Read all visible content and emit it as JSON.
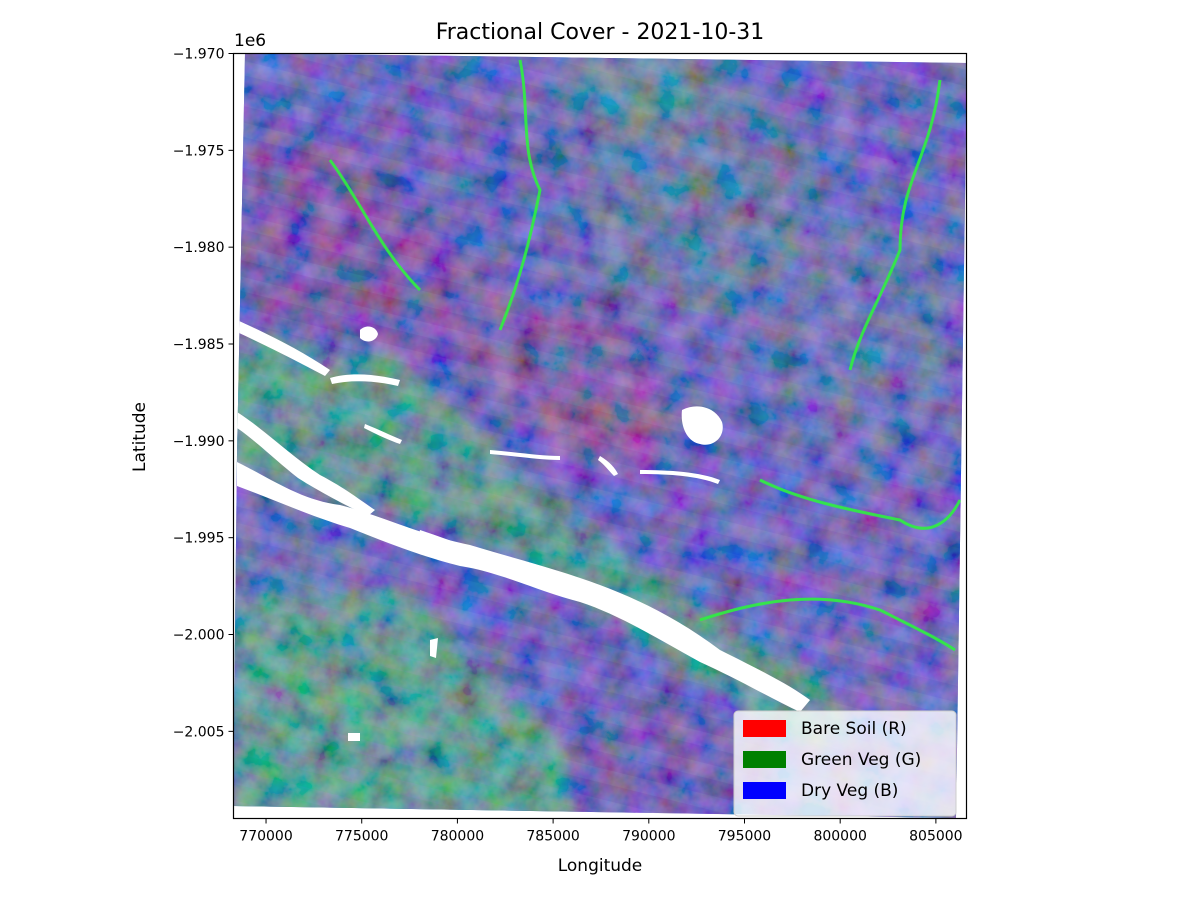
{
  "chart_data": {
    "type": "heatmap",
    "title": "Fractional Cover - 2021-10-31",
    "xlabel": "Longitude",
    "ylabel": "Latitude",
    "y_offset_label": "1e6",
    "xlim": [
      768300,
      806600
    ],
    "ylim": [
      -2.0095,
      -1.97
    ],
    "x_ticks": [
      {
        "value": 770000,
        "label": "770000"
      },
      {
        "value": 775000,
        "label": "775000"
      },
      {
        "value": 780000,
        "label": "780000"
      },
      {
        "value": 785000,
        "label": "785000"
      },
      {
        "value": 790000,
        "label": "790000"
      },
      {
        "value": 795000,
        "label": "795000"
      },
      {
        "value": 800000,
        "label": "800000"
      },
      {
        "value": 805000,
        "label": "805000"
      }
    ],
    "y_ticks": [
      {
        "value": -1.97,
        "label": "−1.970"
      },
      {
        "value": -1.975,
        "label": "−1.975"
      },
      {
        "value": -1.98,
        "label": "−1.980"
      },
      {
        "value": -1.985,
        "label": "−1.985"
      },
      {
        "value": -1.99,
        "label": "−1.990"
      },
      {
        "value": -1.995,
        "label": "−1.995"
      },
      {
        "value": -2.0,
        "label": "−2.000"
      },
      {
        "value": -2.005,
        "label": "−2.005"
      }
    ],
    "legend": {
      "placement": "lower-right",
      "entries": [
        {
          "label": "Bare Soil (R)",
          "color": "#ff0000"
        },
        {
          "label": "Green Veg (G)",
          "color": "#008000"
        },
        {
          "label": "Dry Veg (B)",
          "color": "#0000ff"
        }
      ]
    },
    "grid": false,
    "colors": {
      "bare_soil": "#ff0000",
      "green_veg": "#00e640",
      "dry_veg": "#3a4ad0",
      "water_mask": "#ffffff"
    }
  }
}
